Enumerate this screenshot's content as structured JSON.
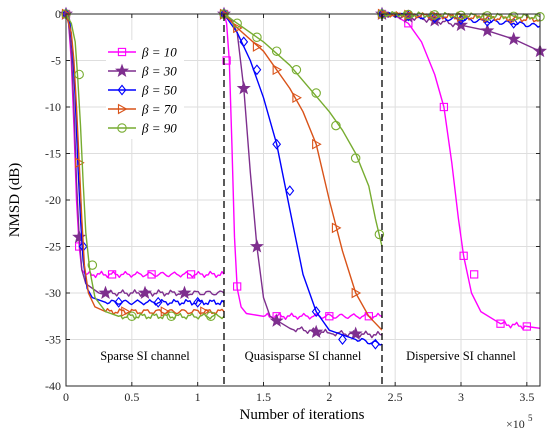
{
  "chart_data": {
    "type": "line",
    "xlabel": "Number of iterations",
    "ylabel": "NMSD (dB)",
    "x_multiplier_label": "×10",
    "x_multiplier_exp": "5",
    "xlim": [
      0,
      3.6
    ],
    "ylim": [
      -40,
      0
    ],
    "xticks": [
      0,
      0.5,
      1,
      1.5,
      2,
      2.5,
      3,
      3.5
    ],
    "xtick_labels": [
      "0",
      "0.5",
      "1",
      "1.5",
      "2",
      "2.5",
      "3",
      "3.5"
    ],
    "yticks": [
      0,
      -5,
      -10,
      -15,
      -20,
      -25,
      -30,
      -35,
      -40
    ],
    "ytick_labels": [
      "0",
      "-5",
      "-10",
      "-15",
      "-20",
      "-25",
      "-30",
      "-35",
      "-40"
    ],
    "grid": true,
    "legend_position": "upper-left",
    "boundaries": [
      1.2,
      2.4
    ],
    "regions": [
      {
        "label": "Sparse SI channel",
        "x": 0.6
      },
      {
        "label": "Quasisparse SI channel",
        "x": 1.8
      },
      {
        "label": "Dispersive  SI channel",
        "x": 3.0
      }
    ],
    "series": [
      {
        "name": "β = 10",
        "color": "#ff00ff",
        "marker": "square",
        "points": [
          [
            0,
            0
          ],
          [
            0.02,
            -1
          ],
          [
            0.04,
            -5
          ],
          [
            0.06,
            -12
          ],
          [
            0.08,
            -20
          ],
          [
            0.1,
            -25
          ],
          [
            0.12,
            -27.5
          ],
          [
            0.15,
            -28
          ],
          [
            1.2,
            -28
          ],
          [
            1.2,
            0
          ],
          [
            1.22,
            -1
          ],
          [
            1.24,
            -5
          ],
          [
            1.26,
            -14
          ],
          [
            1.28,
            -24
          ],
          [
            1.3,
            -29.5
          ],
          [
            1.33,
            -31.5
          ],
          [
            1.37,
            -32.2
          ],
          [
            1.5,
            -32.5
          ],
          [
            2.4,
            -32.5
          ],
          [
            2.4,
            0
          ],
          [
            2.5,
            -0.2
          ],
          [
            2.6,
            -1
          ],
          [
            2.7,
            -3
          ],
          [
            2.8,
            -6.5
          ],
          [
            2.87,
            -10
          ],
          [
            2.93,
            -16
          ],
          [
            2.98,
            -22
          ],
          [
            3.02,
            -26
          ],
          [
            3.08,
            -30
          ],
          [
            3.15,
            -32
          ],
          [
            3.3,
            -33.3
          ],
          [
            3.5,
            -33.6
          ],
          [
            3.6,
            -33.8
          ]
        ],
        "markers": [
          [
            0,
            0
          ],
          [
            0.1,
            -25
          ],
          [
            0.35,
            -28
          ],
          [
            0.65,
            -28
          ],
          [
            0.95,
            -28
          ],
          [
            1.2,
            0
          ],
          [
            1.22,
            -5
          ],
          [
            1.3,
            -29.3
          ],
          [
            1.6,
            -32.5
          ],
          [
            2.0,
            -32.5
          ],
          [
            2.3,
            -32.5
          ],
          [
            2.4,
            0
          ],
          [
            2.6,
            -1
          ],
          [
            2.87,
            -10
          ],
          [
            3.02,
            -26
          ],
          [
            3.1,
            -28
          ],
          [
            3.3,
            -33.3
          ],
          [
            3.5,
            -33.6
          ]
        ]
      },
      {
        "name": "β = 30",
        "color": "#7e2f8e",
        "marker": "star",
        "points": [
          [
            0,
            0
          ],
          [
            0.02,
            -1
          ],
          [
            0.04,
            -4
          ],
          [
            0.06,
            -10
          ],
          [
            0.08,
            -18
          ],
          [
            0.1,
            -24
          ],
          [
            0.12,
            -27.5
          ],
          [
            0.15,
            -29
          ],
          [
            0.25,
            -30
          ],
          [
            1.2,
            -30
          ],
          [
            1.2,
            0
          ],
          [
            1.25,
            -0.5
          ],
          [
            1.3,
            -2
          ],
          [
            1.35,
            -8
          ],
          [
            1.4,
            -17
          ],
          [
            1.45,
            -25
          ],
          [
            1.5,
            -30.5
          ],
          [
            1.55,
            -32.5
          ],
          [
            1.7,
            -33.8
          ],
          [
            2.0,
            -34.3
          ],
          [
            2.4,
            -34.5
          ],
          [
            2.4,
            0
          ],
          [
            2.6,
            -0.3
          ],
          [
            2.8,
            -0.7
          ],
          [
            3.0,
            -1.2
          ],
          [
            3.2,
            -1.8
          ],
          [
            3.4,
            -2.7
          ],
          [
            3.6,
            -4
          ]
        ],
        "markers": [
          [
            0,
            0
          ],
          [
            0.1,
            -24
          ],
          [
            0.3,
            -30
          ],
          [
            0.6,
            -30
          ],
          [
            0.9,
            -30
          ],
          [
            1.2,
            0
          ],
          [
            1.35,
            -8
          ],
          [
            1.45,
            -25
          ],
          [
            1.6,
            -33
          ],
          [
            1.9,
            -34.2
          ],
          [
            2.2,
            -34.4
          ],
          [
            2.4,
            0
          ],
          [
            2.6,
            -0.3
          ],
          [
            2.8,
            -0.7
          ],
          [
            3.0,
            -1.2
          ],
          [
            3.2,
            -1.8
          ],
          [
            3.4,
            -2.7
          ],
          [
            3.6,
            -4
          ]
        ]
      },
      {
        "name": "β = 50",
        "color": "#0000ff",
        "marker": "diamond",
        "points": [
          [
            0,
            0
          ],
          [
            0.03,
            -1
          ],
          [
            0.05,
            -4
          ],
          [
            0.07,
            -9
          ],
          [
            0.09,
            -16
          ],
          [
            0.11,
            -22
          ],
          [
            0.13,
            -26.5
          ],
          [
            0.16,
            -29.5
          ],
          [
            0.2,
            -30.5
          ],
          [
            0.3,
            -31
          ],
          [
            1.2,
            -31
          ],
          [
            1.2,
            0
          ],
          [
            1.3,
            -2
          ],
          [
            1.4,
            -5
          ],
          [
            1.5,
            -9
          ],
          [
            1.6,
            -14
          ],
          [
            1.7,
            -21
          ],
          [
            1.8,
            -28
          ],
          [
            1.9,
            -32
          ],
          [
            2.0,
            -34
          ],
          [
            2.2,
            -35
          ],
          [
            2.4,
            -35.5
          ],
          [
            2.4,
            0
          ],
          [
            2.6,
            -0.2
          ],
          [
            2.8,
            -0.4
          ],
          [
            3.0,
            -0.6
          ],
          [
            3.2,
            -0.8
          ],
          [
            3.4,
            -1
          ],
          [
            3.6,
            -1.3
          ]
        ],
        "markers": [
          [
            0,
            0
          ],
          [
            0.13,
            -25
          ],
          [
            0.4,
            -31
          ],
          [
            0.7,
            -31
          ],
          [
            1.0,
            -31
          ],
          [
            1.2,
            0
          ],
          [
            1.35,
            -3
          ],
          [
            1.45,
            -6
          ],
          [
            1.6,
            -14
          ],
          [
            1.7,
            -19
          ],
          [
            1.9,
            -32
          ],
          [
            2.1,
            -35
          ],
          [
            2.35,
            -35.5
          ],
          [
            2.4,
            0
          ],
          [
            2.6,
            -0.2
          ],
          [
            2.8,
            -0.4
          ],
          [
            3.0,
            -0.6
          ],
          [
            3.2,
            -0.8
          ],
          [
            3.4,
            -1
          ]
        ]
      },
      {
        "name": "β = 70",
        "color": "#d95319",
        "marker": "triangle-right",
        "points": [
          [
            0,
            0
          ],
          [
            0.04,
            -2
          ],
          [
            0.06,
            -5
          ],
          [
            0.08,
            -10
          ],
          [
            0.1,
            -16
          ],
          [
            0.12,
            -22
          ],
          [
            0.14,
            -27
          ],
          [
            0.17,
            -30
          ],
          [
            0.22,
            -31.5
          ],
          [
            0.3,
            -32
          ],
          [
            1.2,
            -32
          ],
          [
            1.2,
            0
          ],
          [
            1.3,
            -1.5
          ],
          [
            1.5,
            -4
          ],
          [
            1.7,
            -8
          ],
          [
            1.8,
            -10.5
          ],
          [
            1.9,
            -14
          ],
          [
            2.0,
            -20
          ],
          [
            2.1,
            -25.5
          ],
          [
            2.2,
            -30
          ],
          [
            2.3,
            -32.5
          ],
          [
            2.4,
            -34
          ],
          [
            2.4,
            0
          ],
          [
            2.6,
            -0.1
          ],
          [
            2.8,
            -0.2
          ],
          [
            3.0,
            -0.3
          ],
          [
            3.2,
            -0.4
          ],
          [
            3.4,
            -0.5
          ],
          [
            3.6,
            -0.6
          ]
        ],
        "markers": [
          [
            0,
            0
          ],
          [
            0.1,
            -16
          ],
          [
            0.45,
            -32
          ],
          [
            0.75,
            -32
          ],
          [
            1.05,
            -32
          ],
          [
            1.2,
            0
          ],
          [
            1.3,
            -1.5
          ],
          [
            1.45,
            -3.5
          ],
          [
            1.6,
            -6
          ],
          [
            1.75,
            -9
          ],
          [
            1.9,
            -14
          ],
          [
            2.05,
            -23
          ],
          [
            2.2,
            -30
          ],
          [
            2.4,
            0
          ],
          [
            2.6,
            -0.1
          ],
          [
            2.8,
            -0.2
          ],
          [
            3.0,
            -0.3
          ],
          [
            3.2,
            -0.4
          ],
          [
            3.4,
            -0.5
          ]
        ]
      },
      {
        "name": "β = 90",
        "color": "#77ac30",
        "marker": "circle",
        "points": [
          [
            0,
            0
          ],
          [
            0.04,
            -1
          ],
          [
            0.07,
            -3
          ],
          [
            0.09,
            -7
          ],
          [
            0.11,
            -12
          ],
          [
            0.13,
            -18
          ],
          [
            0.15,
            -23.5
          ],
          [
            0.18,
            -27.5
          ],
          [
            0.22,
            -30.5
          ],
          [
            0.3,
            -32
          ],
          [
            0.4,
            -32.5
          ],
          [
            1.2,
            -32.5
          ],
          [
            1.2,
            0
          ],
          [
            1.3,
            -1
          ],
          [
            1.5,
            -3
          ],
          [
            1.7,
            -5.5
          ],
          [
            1.85,
            -8
          ],
          [
            2.0,
            -10.5
          ],
          [
            2.1,
            -12.5
          ],
          [
            2.2,
            -15
          ],
          [
            2.3,
            -18.5
          ],
          [
            2.35,
            -22
          ],
          [
            2.4,
            -25
          ],
          [
            2.4,
            0
          ],
          [
            2.6,
            -0.05
          ],
          [
            2.8,
            -0.1
          ],
          [
            3.0,
            -0.15
          ],
          [
            3.2,
            -0.2
          ],
          [
            3.4,
            -0.25
          ],
          [
            3.6,
            -0.3
          ]
        ],
        "markers": [
          [
            0,
            0
          ],
          [
            0.1,
            -6.5
          ],
          [
            0.2,
            -27
          ],
          [
            0.5,
            -32.5
          ],
          [
            0.8,
            -32.5
          ],
          [
            1.1,
            -32.5
          ],
          [
            1.2,
            0
          ],
          [
            1.3,
            -1
          ],
          [
            1.45,
            -2.5
          ],
          [
            1.6,
            -4
          ],
          [
            1.75,
            -6
          ],
          [
            1.9,
            -8.5
          ],
          [
            2.05,
            -12
          ],
          [
            2.2,
            -15.5
          ],
          [
            2.38,
            -23.7
          ],
          [
            2.4,
            0
          ],
          [
            2.6,
            -0.05
          ],
          [
            2.8,
            -0.1
          ],
          [
            3.0,
            -0.15
          ],
          [
            3.2,
            -0.2
          ],
          [
            3.4,
            -0.25
          ],
          [
            3.6,
            -0.3
          ]
        ]
      }
    ]
  }
}
